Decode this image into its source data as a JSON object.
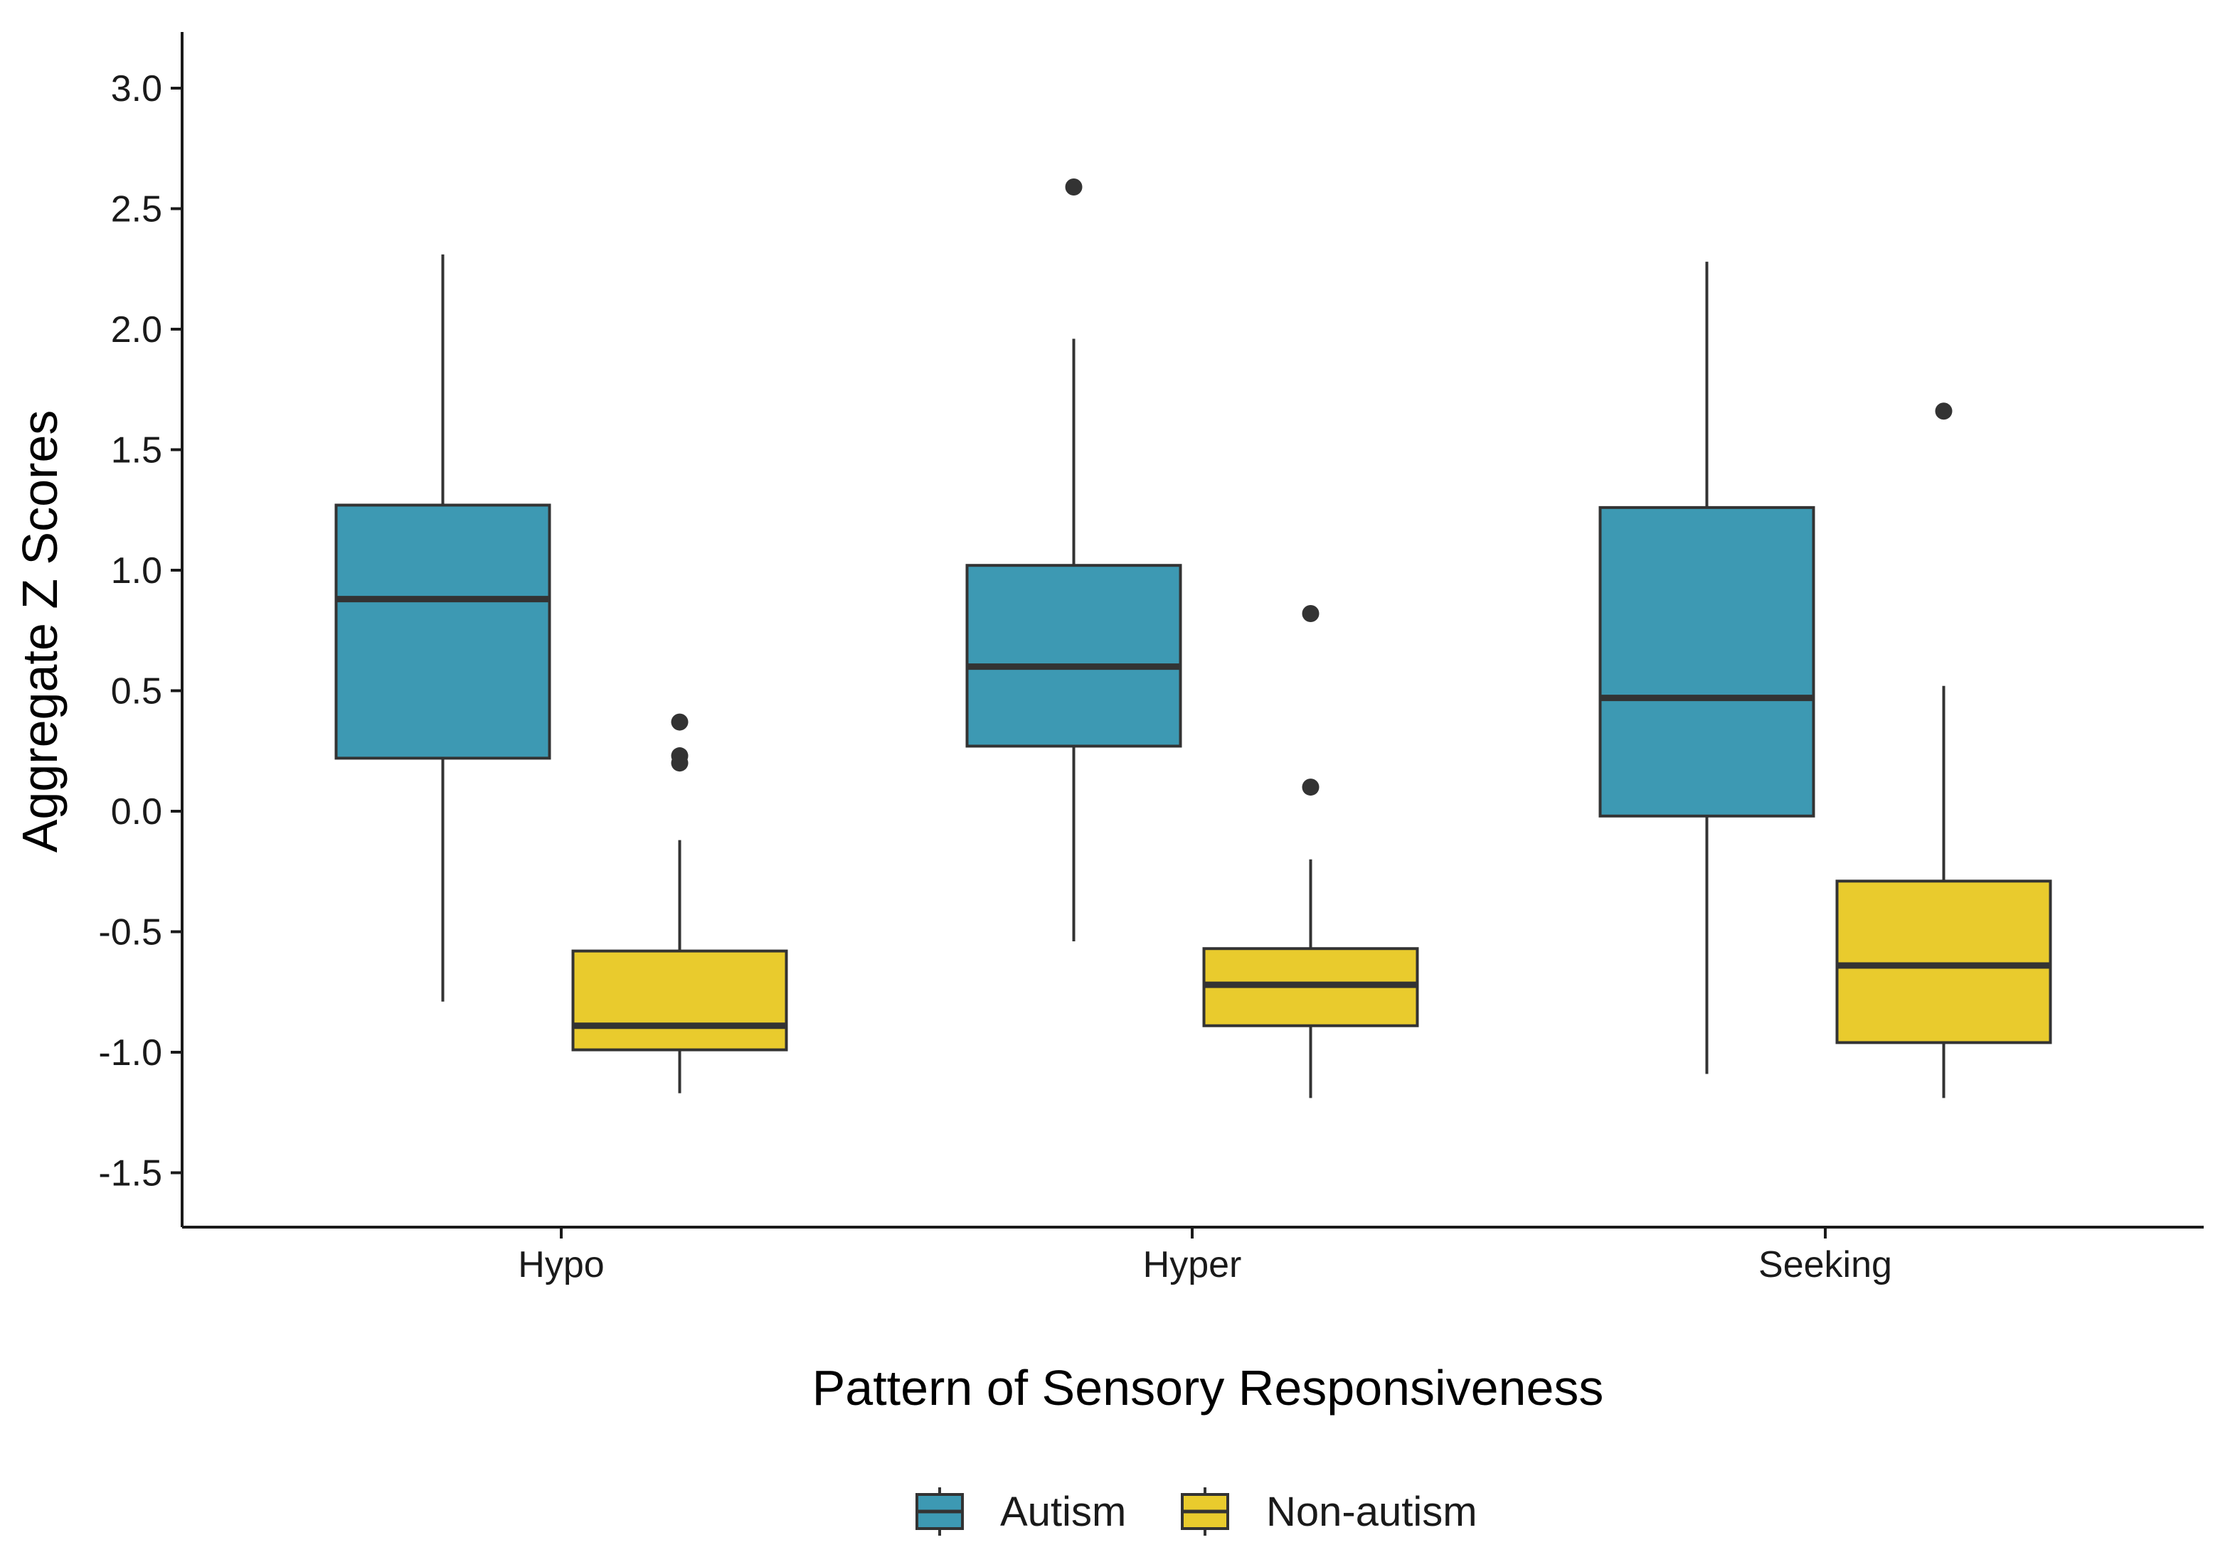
{
  "chart_data": {
    "type": "boxplot",
    "title": "",
    "xlabel": "Pattern of Sensory Responsiveness",
    "ylabel": "Aggregate Z Scores",
    "ylim": [
      -1.72,
      3.25
    ],
    "yticks": [
      "-1.5",
      "-1.0",
      "-0.5",
      "0.0",
      "0.5",
      "1.0",
      "1.5",
      "2.0",
      "2.5",
      "3.0"
    ],
    "categories": [
      "Hypo",
      "Hyper",
      "Seeking"
    ],
    "legend_position": "bottom",
    "series": [
      {
        "name": "Autism",
        "color": "#3D99B3",
        "boxes": [
          {
            "category": "Hypo",
            "whisker_low": -0.79,
            "q1": 0.22,
            "median": 0.88,
            "q3": 1.27,
            "whisker_high": 2.31,
            "outliers": []
          },
          {
            "category": "Hyper",
            "whisker_low": -0.54,
            "q1": 0.27,
            "median": 0.6,
            "q3": 1.02,
            "whisker_high": 1.96,
            "outliers": [
              2.59
            ]
          },
          {
            "category": "Seeking",
            "whisker_low": -1.09,
            "q1": -0.02,
            "median": 0.47,
            "q3": 1.26,
            "whisker_high": 2.28,
            "outliers": []
          }
        ]
      },
      {
        "name": "Non-autism",
        "color": "#E9CB2D",
        "boxes": [
          {
            "category": "Hypo",
            "whisker_low": -1.17,
            "q1": -0.99,
            "median": -0.89,
            "q3": -0.58,
            "whisker_high": -0.12,
            "outliers": [
              0.37,
              0.23,
              0.2
            ]
          },
          {
            "category": "Hyper",
            "whisker_low": -1.19,
            "q1": -0.89,
            "median": -0.72,
            "q3": -0.57,
            "whisker_high": -0.2,
            "outliers": [
              0.82,
              0.1
            ]
          },
          {
            "category": "Seeking",
            "whisker_low": -1.19,
            "q1": -0.96,
            "median": -0.64,
            "q3": -0.29,
            "whisker_high": 0.52,
            "outliers": [
              1.66
            ]
          }
        ]
      }
    ]
  }
}
